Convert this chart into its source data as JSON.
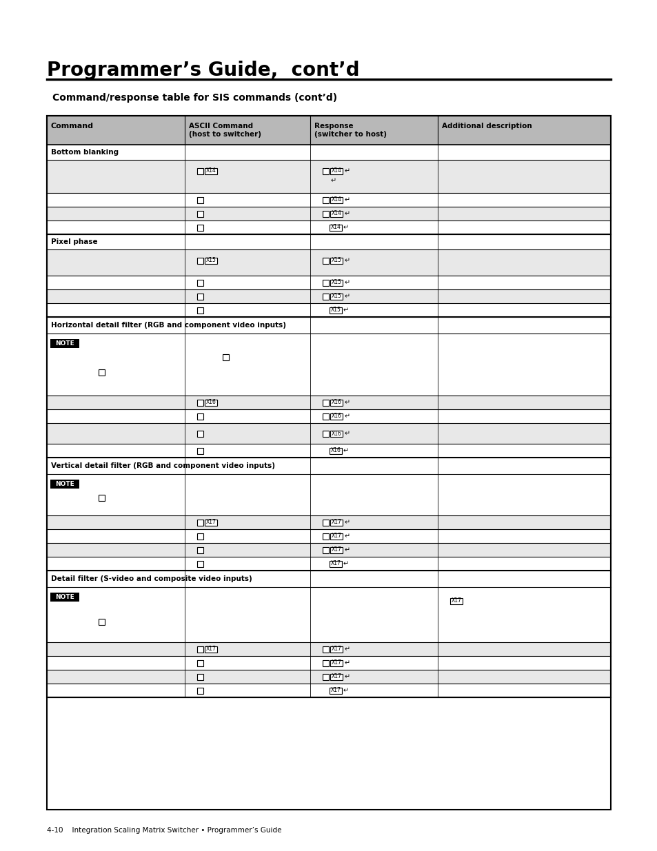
{
  "title": "Programmer’s Guide,  cont’d",
  "subtitle": "Command/response table for SIS commands (cont’d)",
  "page_footer": "4-10    Integration Scaling Matrix Switcher • Programmer’s Guide",
  "bg_color": "#ffffff",
  "header_bg": "#b8b8b8",
  "row_alt_bg": "#e8e8e8",
  "note_bg": "#000000"
}
